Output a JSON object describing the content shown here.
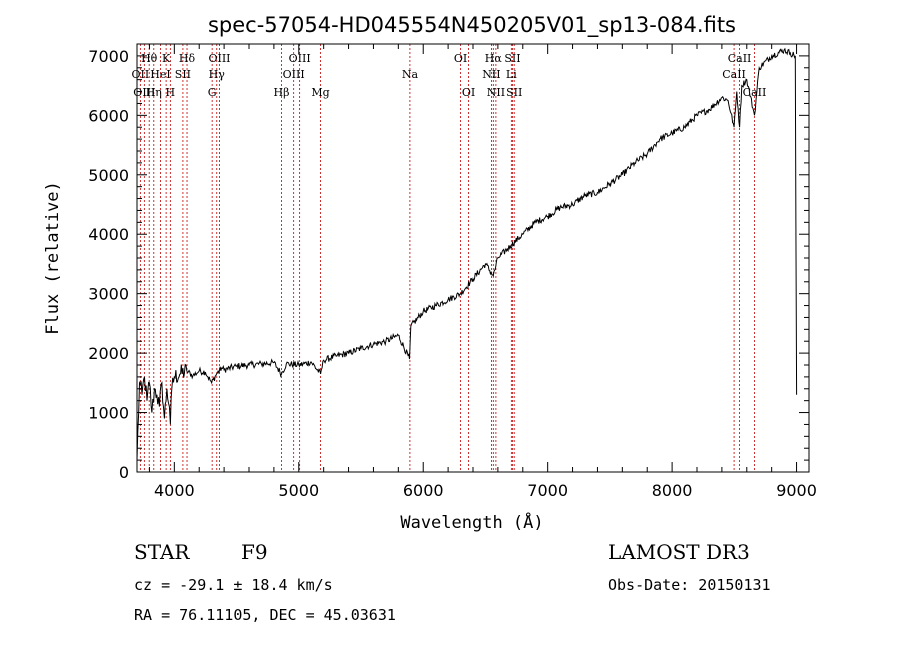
{
  "chart_data": {
    "type": "line",
    "title": "spec-57054-HD045554N450205V01_sp13-084.fits",
    "xlabel": "Wavelength (Å)",
    "ylabel": "Flux (relative)",
    "xlim": [
      3700,
      9100
    ],
    "ylim": [
      0,
      7200
    ],
    "xticks": [
      4000,
      5000,
      6000,
      7000,
      8000,
      9000
    ],
    "yticks": [
      0,
      1000,
      2000,
      3000,
      4000,
      5000,
      6000,
      7000
    ],
    "series": [
      {
        "name": "flux",
        "x": [
          3700,
          3720,
          3740,
          3760,
          3780,
          3800,
          3820,
          3840,
          3860,
          3880,
          3900,
          3920,
          3940,
          3960,
          3968,
          3980,
          4000,
          4050,
          4100,
          4150,
          4200,
          4250,
          4300,
          4340,
          4380,
          4400,
          4500,
          4600,
          4700,
          4800,
          4861,
          4900,
          5000,
          5100,
          5175,
          5200,
          5300,
          5400,
          5500,
          5600,
          5700,
          5800,
          5890,
          5900,
          6000,
          6100,
          6200,
          6300,
          6400,
          6500,
          6563,
          6600,
          6700,
          6800,
          6900,
          7000,
          7100,
          7200,
          7300,
          7400,
          7500,
          7600,
          7700,
          7800,
          7900,
          8000,
          8100,
          8200,
          8300,
          8400,
          8450,
          8498,
          8520,
          8542,
          8560,
          8600,
          8662,
          8700,
          8800,
          8900,
          8950,
          8990,
          9000
        ],
        "y": [
          200,
          1500,
          1300,
          1600,
          1200,
          1500,
          1000,
          1400,
          1300,
          1100,
          1500,
          900,
          1400,
          1100,
          800,
          1400,
          1600,
          1650,
          1700,
          1620,
          1700,
          1680,
          1500,
          1650,
          1750,
          1720,
          1780,
          1800,
          1820,
          1840,
          1650,
          1820,
          1800,
          1850,
          1650,
          1880,
          1950,
          2000,
          2080,
          2150,
          2200,
          2300,
          1900,
          2450,
          2700,
          2800,
          2900,
          3000,
          3250,
          3500,
          3300,
          3600,
          3800,
          4000,
          4200,
          4300,
          4450,
          4500,
          4650,
          4700,
          4850,
          5000,
          5200,
          5350,
          5600,
          5700,
          5800,
          6000,
          6100,
          6300,
          6250,
          5800,
          6400,
          5800,
          6500,
          6600,
          6000,
          6800,
          7000,
          7100,
          7050,
          7000,
          1300
        ]
      }
    ],
    "spectral_lines": [
      {
        "label": "Hθ",
        "wavelength": 3798,
        "row": 1
      },
      {
        "label": "OII",
        "wavelength": 3727,
        "row": 2
      },
      {
        "label": "OIII",
        "wavelength": 3759,
        "row": 3
      },
      {
        "label": "K",
        "wavelength": 3934,
        "row": 1
      },
      {
        "label": "HeI",
        "wavelength": 3889,
        "row": 2
      },
      {
        "label": "Hη",
        "wavelength": 3835,
        "row": 3
      },
      {
        "label": "H",
        "wavelength": 3968,
        "row": 3
      },
      {
        "label": "Hδ",
        "wavelength": 4102,
        "row": 1
      },
      {
        "label": "SII",
        "wavelength": 4069,
        "row": 2
      },
      {
        "label": "OIII",
        "wavelength": 4363,
        "row": 1
      },
      {
        "label": "Hγ",
        "wavelength": 4341,
        "row": 2
      },
      {
        "label": "G",
        "wavelength": 4304,
        "row": 3
      },
      {
        "label": "OIII",
        "wavelength": 5007,
        "row": 1
      },
      {
        "label": "OIII",
        "wavelength": 4959,
        "row": 2
      },
      {
        "label": "Hβ",
        "wavelength": 4861,
        "row": 3
      },
      {
        "label": "Mg",
        "wavelength": 5175,
        "row": 3
      },
      {
        "label": "Na",
        "wavelength": 5893,
        "row": 2
      },
      {
        "label": "OI",
        "wavelength": 6300,
        "row": 1
      },
      {
        "label": "OI",
        "wavelength": 6364,
        "row": 3
      },
      {
        "label": "Hα",
        "wavelength": 6563,
        "row": 1
      },
      {
        "label": "SII",
        "wavelength": 6717,
        "row": 1
      },
      {
        "label": "NII",
        "wavelength": 6548,
        "row": 2
      },
      {
        "label": "Li",
        "wavelength": 6708,
        "row": 2
      },
      {
        "label": "NII",
        "wavelength": 6584,
        "row": 3
      },
      {
        "label": "SII",
        "wavelength": 6731,
        "row": 3
      },
      {
        "label": "CaII",
        "wavelength": 8542,
        "row": 1
      },
      {
        "label": "CaII",
        "wavelength": 8498,
        "row": 2
      },
      {
        "label": "CaII",
        "wavelength": 8662,
        "row": 3
      }
    ]
  },
  "info": {
    "object_class": "STAR",
    "subclass": "F9",
    "survey": "LAMOST DR3",
    "redshift": "cz = -29.1 ± 18.4 km/s",
    "obs_date": "Obs-Date: 20150131",
    "coords": "RA =  76.11105, DEC =  45.03631"
  }
}
